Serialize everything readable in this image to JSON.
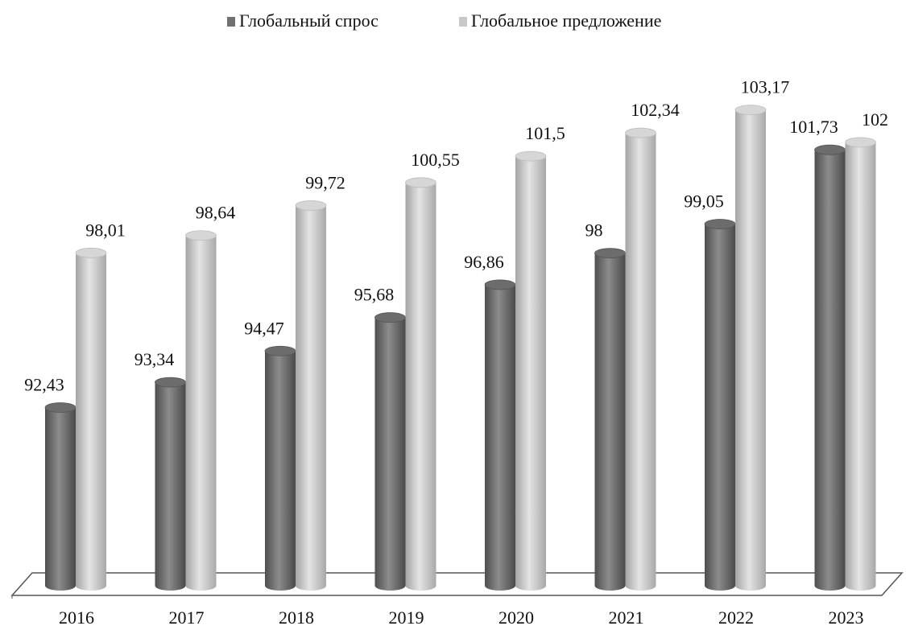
{
  "chart_data": {
    "type": "bar3d",
    "categories": [
      "2016",
      "2017",
      "2018",
      "2019",
      "2020",
      "2021",
      "2022",
      "2023"
    ],
    "series": [
      {
        "name": "Глобальный спрос",
        "color": "#707070",
        "values": [
          92.43,
          93.34,
          94.47,
          95.68,
          96.86,
          98,
          99.05,
          101.73
        ],
        "value_labels": [
          "92,43",
          "93,34",
          "94,47",
          "95,68",
          "96,86",
          "98",
          "99,05",
          "101,73"
        ]
      },
      {
        "name": "Глобальное предложение",
        "color": "#c8c8c8",
        "values": [
          98.01,
          98.64,
          99.72,
          100.55,
          101.5,
          102.34,
          103.17,
          102
        ],
        "value_labels": [
          "98,01",
          "98,64",
          "99,72",
          "100,55",
          "101,5",
          "102,34",
          "103,17",
          "102"
        ]
      }
    ],
    "ylim": [
      86,
      104
    ],
    "legend": "top"
  }
}
